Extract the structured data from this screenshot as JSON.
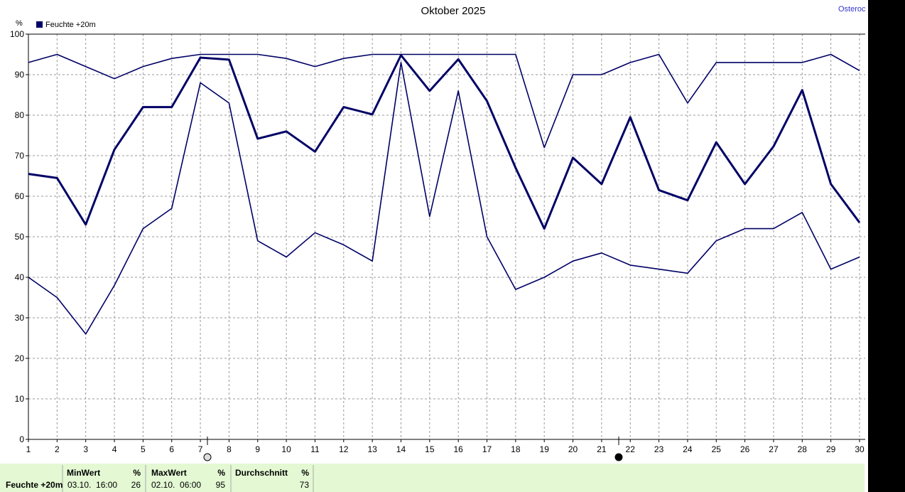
{
  "chart_data": {
    "type": "line",
    "title": "Oktober 2025",
    "site": "Osteroc",
    "y_unit": "%",
    "x": [
      1,
      2,
      3,
      4,
      5,
      6,
      7,
      8,
      9,
      10,
      11,
      12,
      13,
      14,
      15,
      16,
      17,
      18,
      19,
      20,
      21,
      22,
      23,
      24,
      25,
      26,
      27,
      28,
      29,
      30
    ],
    "xlim": [
      1,
      30
    ],
    "xticks": [
      1,
      2,
      3,
      4,
      5,
      6,
      7,
      8,
      9,
      10,
      11,
      12,
      13,
      14,
      15,
      16,
      17,
      18,
      19,
      20,
      21,
      22,
      23,
      24,
      25,
      26,
      27,
      28,
      29,
      30
    ],
    "ylim": [
      0,
      100
    ],
    "yticks": [
      0,
      10,
      20,
      30,
      40,
      50,
      60,
      70,
      80,
      90,
      100
    ],
    "grid": true,
    "legend": "top-left",
    "series": [
      {
        "name": "Feuchte +20m",
        "color": "#000066",
        "values": [
          65.5,
          64.5,
          53,
          71.5,
          82,
          82,
          94.2,
          93.7,
          74.2,
          76,
          71,
          82,
          80.2,
          94.8,
          86,
          93.8,
          83.5,
          67,
          52,
          69.5,
          63,
          79.5,
          61.5,
          59,
          73.3,
          63,
          72.3,
          86.2,
          63,
          53.5
        ]
      },
      {
        "color": "#000066",
        "values": [
          93,
          95,
          92,
          89,
          92,
          94,
          95,
          95,
          95,
          94,
          92,
          94,
          95,
          95,
          95,
          95,
          95,
          95,
          72,
          90,
          90,
          93,
          95,
          83,
          93,
          93,
          93,
          93,
          95,
          91
        ]
      },
      {
        "color": "#000066",
        "values": [
          40,
          35,
          26,
          38,
          52,
          57,
          88,
          83,
          49,
          45,
          51,
          48,
          44,
          93,
          55,
          86,
          50,
          37,
          40,
          44,
          46,
          43,
          42,
          41,
          49,
          52,
          52,
          56,
          42,
          45
        ]
      }
    ]
  },
  "table": {
    "header": [
      "MinWert",
      "%",
      "MaxWert",
      "%",
      "Durchschnitt",
      "%"
    ],
    "rows": [
      [
        "Feuchte +20m",
        "03.10.  16:00",
        "26",
        "02.10.  06:00",
        "95",
        "73"
      ]
    ]
  }
}
